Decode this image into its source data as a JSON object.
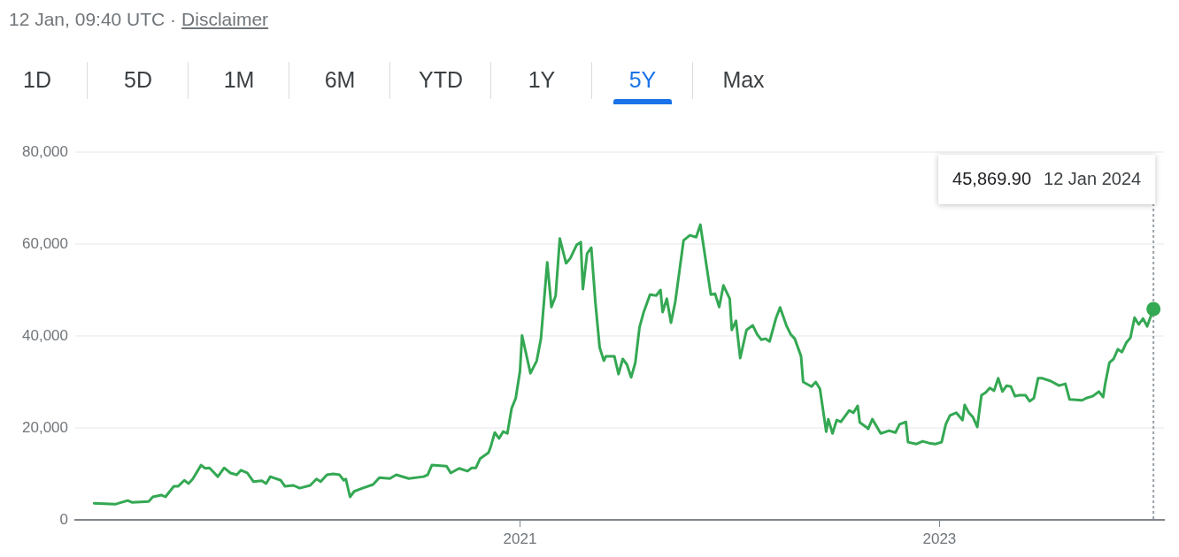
{
  "chart_data": {
    "type": "line",
    "annotations": [
      "12 Jan, 09:40 UTC ·",
      "Disclaimer",
      "1D",
      "5D",
      "1M",
      "6M",
      "YTD",
      "1Y",
      "5Y",
      "Max",
      "45,869.90"
    ],
    "x": [
      2018.97,
      2019.07,
      2019.13,
      2019.15,
      2019.23,
      2019.25,
      2019.29,
      2019.31,
      2019.35,
      2019.37,
      2019.4,
      2019.42,
      2019.44,
      2019.48,
      2019.5,
      2019.52,
      2019.56,
      2019.59,
      2019.62,
      2019.65,
      2019.67,
      2019.7,
      2019.73,
      2019.77,
      2019.79,
      2019.81,
      2019.86,
      2019.88,
      2019.92,
      2019.95,
      2020.0,
      2020.03,
      2020.05,
      2020.08,
      2020.11,
      2020.14,
      2020.16,
      2020.17,
      2020.19,
      2020.21,
      2020.25,
      2020.3,
      2020.33,
      2020.38,
      2020.41,
      2020.47,
      2020.54,
      2020.56,
      2020.58,
      2020.65,
      2020.67,
      2020.71,
      2020.75,
      2020.77,
      2020.79,
      2020.81,
      2020.85,
      2020.86,
      2020.88,
      2020.9,
      2020.92,
      2020.94,
      2020.96,
      2020.98,
      2021.0,
      2021.01,
      2021.05,
      2021.08,
      2021.1,
      2021.13,
      2021.15,
      2021.17,
      2021.19,
      2021.22,
      2021.24,
      2021.27,
      2021.29,
      2021.3,
      2021.32,
      2021.34,
      2021.36,
      2021.38,
      2021.4,
      2021.41,
      2021.45,
      2021.47,
      2021.49,
      2021.51,
      2021.53,
      2021.55,
      2021.57,
      2021.59,
      2021.62,
      2021.65,
      2021.67,
      2021.68,
      2021.7,
      2021.72,
      2021.74,
      2021.78,
      2021.81,
      2021.84,
      2021.86,
      2021.91,
      2021.93,
      2021.95,
      2021.97,
      2022.0,
      2022.01,
      2022.03,
      2022.05,
      2022.08,
      2022.11,
      2022.13,
      2022.15,
      2022.17,
      2022.19,
      2022.22,
      2022.24,
      2022.27,
      2022.29,
      2022.31,
      2022.34,
      2022.35,
      2022.39,
      2022.41,
      2022.43,
      2022.46,
      2022.47,
      2022.49,
      2022.51,
      2022.53,
      2022.57,
      2022.59,
      2022.61,
      2022.62,
      2022.65,
      2022.66,
      2022.68,
      2022.72,
      2022.76,
      2022.79,
      2022.81,
      2022.84,
      2022.85,
      2022.89,
      2022.92,
      2022.95,
      2022.98,
      2023.01,
      2023.03,
      2023.05,
      2023.08,
      2023.11,
      2023.12,
      2023.14,
      2023.16,
      2023.18,
      2023.2,
      2023.22,
      2023.24,
      2023.26,
      2023.28,
      2023.3,
      2023.32,
      2023.34,
      2023.36,
      2023.38,
      2023.41,
      2023.43,
      2023.45,
      2023.47,
      2023.49,
      2023.53,
      2023.57,
      2023.6,
      2023.62,
      2023.68,
      2023.7,
      2023.73,
      2023.76,
      2023.78,
      2023.79,
      2023.81,
      2023.83,
      2023.85,
      2023.87,
      2023.89,
      2023.91,
      2023.93,
      2023.95,
      2023.97,
      2023.99,
      2024.02
    ],
    "series": [
      {
        "color": "#34a853",
        "values": [
          3600,
          3400,
          4200,
          3800,
          4000,
          5000,
          5400,
          5000,
          7300,
          7300,
          8600,
          7900,
          8900,
          11900,
          11200,
          11300,
          9400,
          11300,
          10200,
          9800,
          10800,
          10200,
          8300,
          8500,
          7900,
          9400,
          8600,
          7300,
          7500,
          6900,
          7500,
          8900,
          8300,
          9800,
          10000,
          9800,
          8600,
          8900,
          5000,
          6200,
          6900,
          7700,
          9200,
          9000,
          9800,
          9000,
          9400,
          9800,
          11900,
          11700,
          10200,
          11200,
          10600,
          11300,
          11300,
          13300,
          14600,
          15800,
          19000,
          17700,
          19200,
          18800,
          24200,
          26500,
          32300,
          40100,
          31900,
          34600,
          39400,
          56000,
          46300,
          48700,
          61200,
          55800,
          56900,
          59800,
          60400,
          50200,
          57900,
          59200,
          47100,
          37500,
          34600,
          35600,
          35600,
          31700,
          35000,
          33800,
          31000,
          34200,
          41900,
          45200,
          49000,
          48800,
          50000,
          45200,
          48100,
          42900,
          47300,
          60800,
          61900,
          61500,
          64200,
          49000,
          49200,
          46300,
          51000,
          48100,
          41300,
          43300,
          35200,
          41300,
          42300,
          40400,
          39200,
          39400,
          38800,
          43800,
          46200,
          42300,
          40400,
          39400,
          35600,
          30000,
          29000,
          30000,
          28500,
          19200,
          21900,
          18800,
          21700,
          21300,
          23800,
          23300,
          24800,
          21200,
          20200,
          19800,
          21900,
          18800,
          19400,
          19000,
          20800,
          21300,
          16900,
          16500,
          17100,
          16700,
          16500,
          16900,
          20800,
          22700,
          23300,
          21700,
          25000,
          23300,
          22300,
          20200,
          27100,
          27700,
          28700,
          28100,
          30800,
          27900,
          29200,
          29000,
          26900,
          27100,
          27100,
          25800,
          26500,
          30800,
          30800,
          30200,
          29200,
          29600,
          26200,
          26000,
          26500,
          26900,
          27900,
          26700,
          29600,
          34200,
          35000,
          37100,
          36500,
          38500,
          39600,
          44000,
          42500,
          43800,
          42100,
          45869.9
        ]
      }
    ],
    "xlim": [
      2018.88,
      2024.07
    ],
    "xticks": [
      2021,
      2023
    ],
    "ylim": [
      0,
      80000
    ],
    "yticks": [
      0,
      {
        "value": 20000,
        "label": "20,000"
      },
      {
        "value": 40000,
        "label": "40,000"
      },
      {
        "value": 60000,
        "label": "60,000"
      },
      {
        "value": 80000,
        "label": "80,000"
      }
    ],
    "grid": "y",
    "ref_lines": [
      {
        "axis": "x",
        "value": 2024.02,
        "label": "12 Jan 2024",
        "color": "#9aa0a6",
        "line_style": "dotted"
      }
    ]
  }
}
